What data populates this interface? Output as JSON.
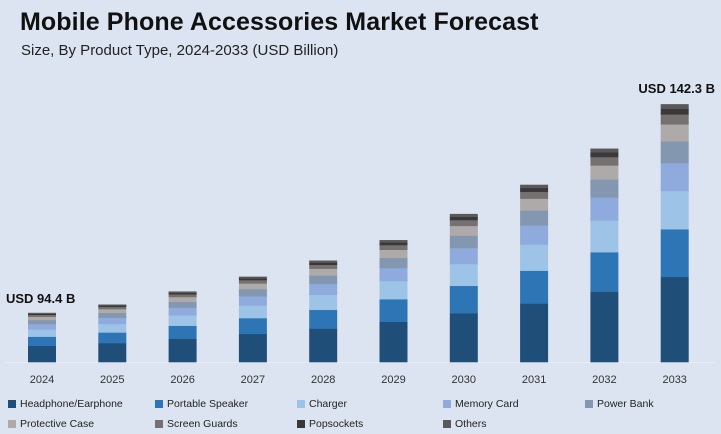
{
  "header": {
    "title": "Mobile Phone Accessories Market Forecast",
    "subtitle": "Size, By Product Type, 2024-2033 (USD Billion)"
  },
  "chart_data": {
    "type": "bar",
    "stacked": true,
    "title": "Mobile Phone Accessories Market Forecast",
    "subtitle": "Size, By Product Type, 2024-2033 (USD Billion)",
    "xlabel": "",
    "ylabel": "USD Billion",
    "ylim": [
      83.1,
      146
    ],
    "grid": false,
    "legend_position": "bottom",
    "categories": [
      "2024",
      "2025",
      "2026",
      "2027",
      "2028",
      "2029",
      "2030",
      "2031",
      "2032",
      "2033"
    ],
    "totals": [
      94.4,
      96.3,
      99.3,
      102.7,
      106.4,
      111.1,
      117.1,
      123.8,
      132.1,
      142.3
    ],
    "series": [
      {
        "name": "Headphone/Earphone",
        "color": "#1f4e79",
        "values": [
          31.2,
          31.8,
          32.8,
          33.9,
          35.1,
          36.7,
          38.6,
          40.9,
          43.6,
          47.0
        ]
      },
      {
        "name": "Portable Speaker",
        "color": "#2e75b6",
        "values": [
          17.5,
          17.8,
          18.4,
          19.0,
          19.7,
          20.6,
          21.7,
          22.9,
          24.4,
          26.3
        ]
      },
      {
        "name": "Charger",
        "color": "#9dc3e6",
        "values": [
          14.0,
          14.3,
          14.7,
          15.2,
          15.7,
          16.4,
          17.3,
          18.3,
          19.6,
          21.1
        ]
      },
      {
        "name": "Memory Card",
        "color": "#8faadc",
        "values": [
          10.2,
          10.4,
          10.7,
          11.1,
          11.5,
          12.0,
          12.6,
          13.4,
          14.3,
          15.4
        ]
      },
      {
        "name": "Power Bank",
        "color": "#8497b0",
        "values": [
          7.9,
          8.1,
          8.3,
          8.6,
          8.9,
          9.3,
          9.8,
          10.4,
          11.1,
          12.0
        ]
      },
      {
        "name": "Protective Case",
        "color": "#aeaaaa",
        "values": [
          6.2,
          6.4,
          6.6,
          6.8,
          7.0,
          7.3,
          7.7,
          8.2,
          8.7,
          9.4
        ]
      },
      {
        "name": "Screen Guards",
        "color": "#767171",
        "values": [
          3.7,
          3.8,
          3.9,
          4.0,
          4.1,
          4.3,
          4.6,
          4.8,
          5.2,
          5.5
        ]
      },
      {
        "name": "Popsockets",
        "color": "#3a3838",
        "values": [
          2.1,
          2.1,
          2.2,
          2.3,
          2.3,
          2.4,
          2.6,
          2.7,
          2.9,
          3.1
        ]
      },
      {
        "name": "Others",
        "color": "#595959",
        "values": [
          1.6,
          1.6,
          1.7,
          1.8,
          2.1,
          2.1,
          2.2,
          2.2,
          2.3,
          2.5
        ]
      }
    ],
    "annotations": [
      {
        "category": "2024",
        "text": "USD 94.4 B"
      },
      {
        "category": "2033",
        "text": "USD 142.3 B"
      }
    ]
  }
}
